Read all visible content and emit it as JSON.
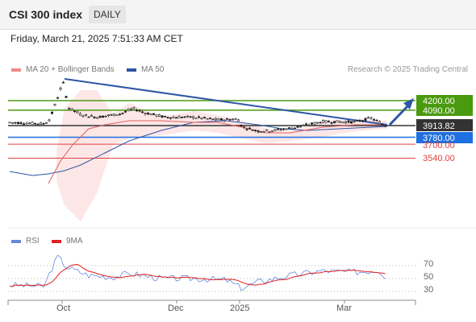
{
  "header": {
    "title": "CSI 300 index",
    "period": "DAILY"
  },
  "timestamp": "Friday, March 21, 2025 7:51:33 AM CET",
  "copyright": "Research © 2025 Trading Central",
  "legend": [
    {
      "label": "MA 20 + Bollinger Bands",
      "color": "#f08a88"
    },
    {
      "label": "MA 50",
      "color": "#2e56a6"
    }
  ],
  "rsi_legend": [
    {
      "label": "RSI",
      "color": "#6688dd"
    },
    {
      "label": "9MA",
      "color": "#e02020"
    }
  ],
  "price_levels": [
    {
      "label": "4200.00",
      "value": 4200,
      "color": "#4a9a10",
      "text_color": "#ffffff",
      "boxed": true
    },
    {
      "label": "4090.00",
      "value": 4090,
      "color": "#4a9a10",
      "text_color": "#ffffff",
      "boxed": true
    },
    {
      "label": "3913.82",
      "value": 3913.82,
      "color": "#333333",
      "text_color": "#ffffff",
      "boxed": true
    },
    {
      "label": "3780.00",
      "value": 3780,
      "color": "#1f6fe0",
      "text_color": "#ffffff",
      "boxed": true
    },
    {
      "label": "3700.00",
      "value": 3700,
      "color": "#e04040",
      "text_color": "#e04040",
      "boxed": false
    },
    {
      "label": "3540.00",
      "value": 3540,
      "color": "#e04040",
      "text_color": "#e04040",
      "boxed": false
    }
  ],
  "rsi_levels": [
    "70",
    "50",
    "30"
  ],
  "x_ticks": [
    "Oct",
    "Dec",
    "2025",
    "Mar"
  ]
}
